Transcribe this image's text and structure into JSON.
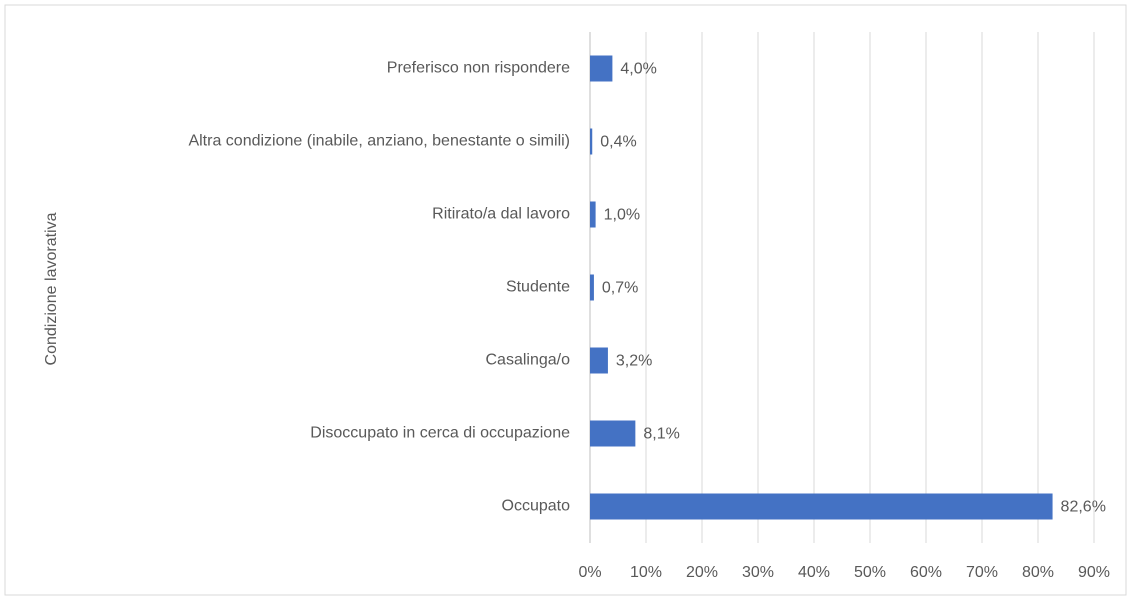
{
  "chart_data": {
    "type": "bar",
    "orientation": "horizontal",
    "y_axis_label": "Condizione lavorativa",
    "categories": [
      "Preferisco non rispondere",
      "Altra condizione (inabile, anziano, benestante o simili)",
      "Ritirato/a dal lavoro",
      "Studente",
      "Casalinga/o",
      "Disoccupato in cerca di occupazione",
      "Occupato"
    ],
    "values": [
      4.0,
      0.4,
      1.0,
      0.7,
      3.2,
      8.1,
      82.6
    ],
    "value_labels": [
      "4,0%",
      "0,4%",
      "1,0%",
      "0,7%",
      "3,2%",
      "8,1%",
      "82,6%"
    ],
    "color": "#4472c4",
    "xlim": [
      0,
      90
    ],
    "xticks": [
      {
        "value": 0,
        "label": "0%"
      },
      {
        "value": 10,
        "label": "10%"
      },
      {
        "value": 20,
        "label": "20%"
      },
      {
        "value": 30,
        "label": "30%"
      },
      {
        "value": 40,
        "label": "40%"
      },
      {
        "value": 50,
        "label": "50%"
      },
      {
        "value": 60,
        "label": "60%"
      },
      {
        "value": 70,
        "label": "70%"
      },
      {
        "value": 80,
        "label": "80%"
      },
      {
        "value": 90,
        "label": "90%"
      }
    ],
    "grid": true
  }
}
